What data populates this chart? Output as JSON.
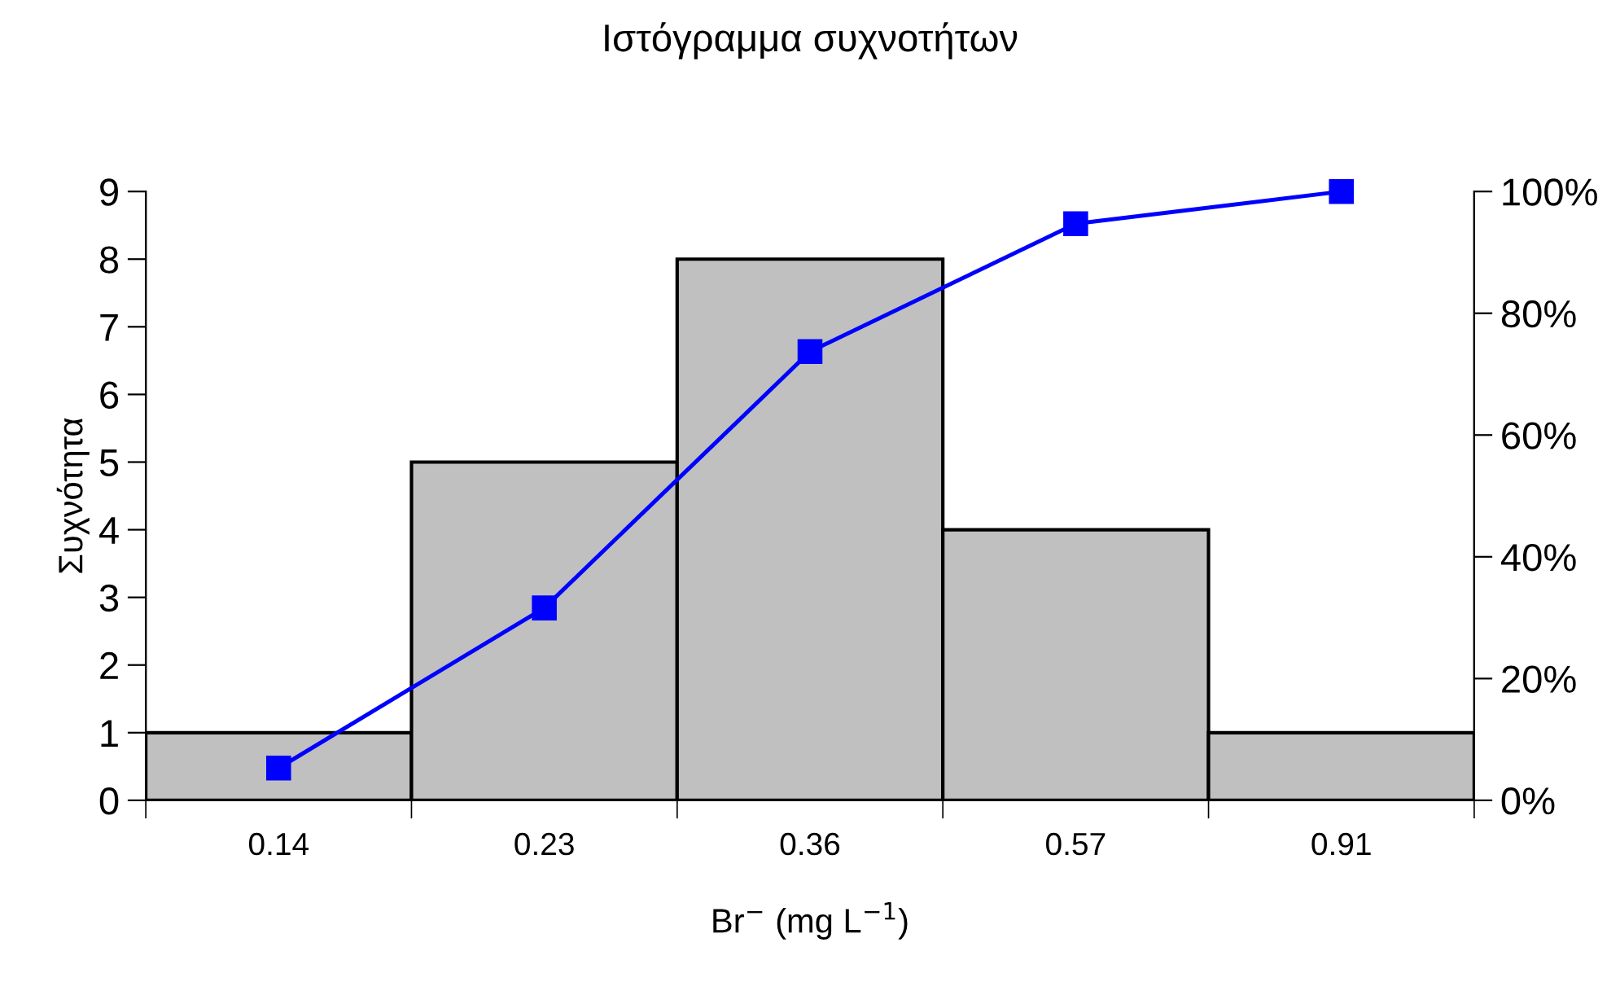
{
  "chart_data": {
    "type": "bar",
    "title": "Ιστόγραμμα συχνοτήτων",
    "xlabel": "Br$^{−}$ (mg L$^{−1}$)",
    "ylabel": "Συχνότητα",
    "categories": [
      "0.14",
      "0.23",
      "0.36",
      "0.57",
      "0.91"
    ],
    "series": [
      {
        "color": "#c0c0c0",
        "values": [
          1,
          5,
          8,
          4,
          1
        ]
      },
      {
        "type": "line",
        "axis": "y2",
        "color": "#0000ff",
        "marker": "square",
        "values": [
          5.3,
          31.6,
          73.7,
          94.7,
          100
        ]
      }
    ],
    "ylim": [
      0,
      9
    ],
    "yticks": [
      0,
      1,
      2,
      3,
      4,
      5,
      6,
      7,
      8,
      9
    ],
    "y2lim": [
      0,
      100
    ],
    "y2ticks": [
      {
        "value": 0,
        "label": "0%"
      },
      {
        "value": 20,
        "label": "20%"
      },
      {
        "value": 40,
        "label": "40%"
      },
      {
        "value": 60,
        "label": "60%"
      },
      {
        "value": 80,
        "label": "80%"
      },
      {
        "value": 100,
        "label": "100%"
      }
    ],
    "grid": false,
    "legend": false
  }
}
